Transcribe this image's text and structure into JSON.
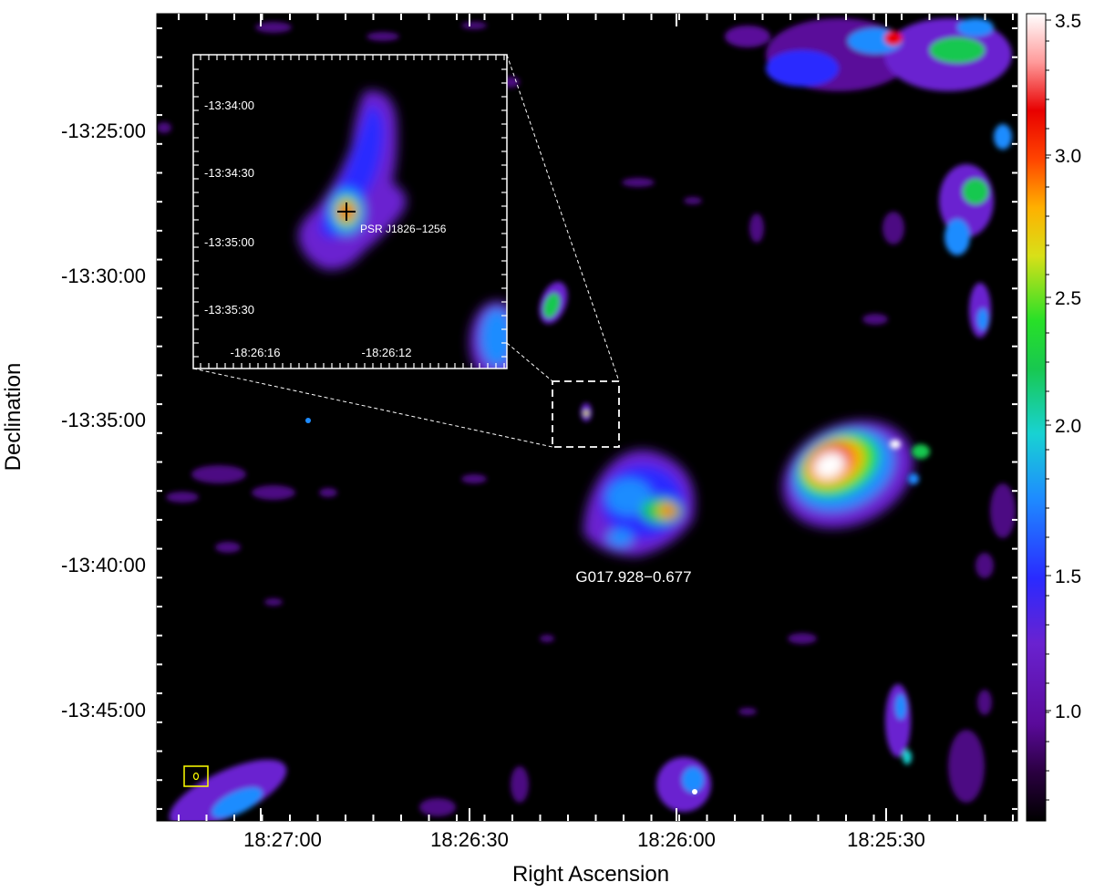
{
  "figure": {
    "xlabel": "Right Ascension",
    "ylabel": "Declination",
    "x_ticks": [
      "18:27:00",
      "18:26:30",
      "18:26:00",
      "18:25:30"
    ],
    "y_ticks": [
      "-13:25:00",
      "-13:30:00",
      "-13:35:00",
      "-13:40:00",
      "-13:45:00"
    ],
    "source_label": "G017.928−0.677"
  },
  "colorbar": {
    "ticks": [
      "3.5",
      "3.0",
      "2.5",
      "2.0",
      "1.5",
      "1.0"
    ]
  },
  "inset": {
    "y_ticks": [
      "-13:34:00",
      "-13:34:30",
      "-13:35:00",
      "-13:35:30"
    ],
    "x_ticks": [
      "-18:26:16",
      "-18:26:12"
    ],
    "pulsar_label": "PSR J1826−1256"
  }
}
